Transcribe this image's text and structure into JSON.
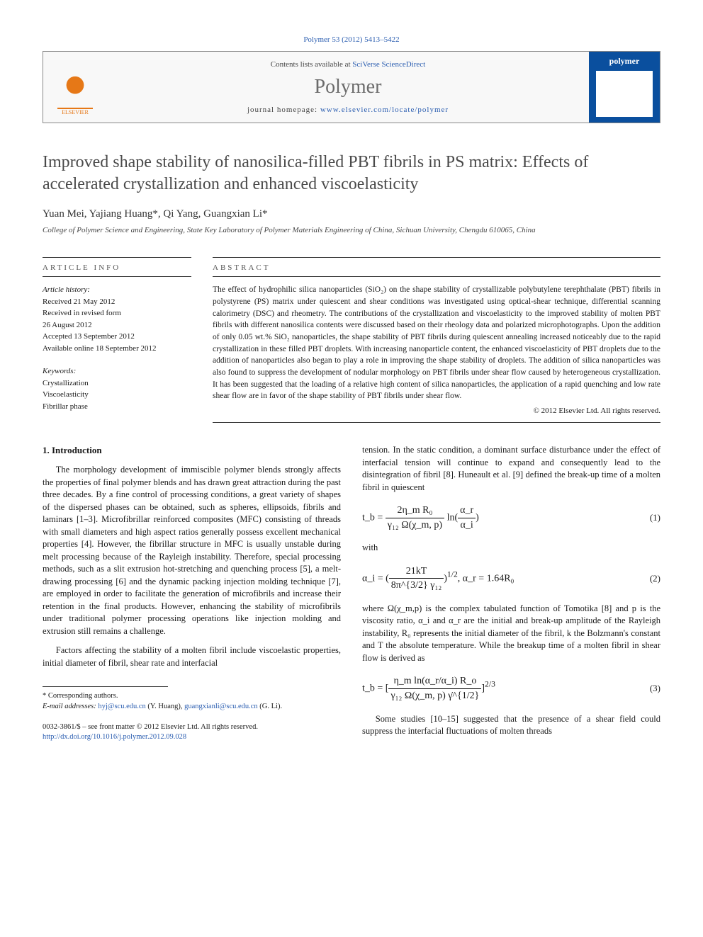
{
  "citation": "Polymer 53 (2012) 5413–5422",
  "header": {
    "contents_prefix": "Contents lists available at ",
    "contents_link": "SciVerse ScienceDirect",
    "journal": "Polymer",
    "homepage_prefix": "journal homepage: ",
    "homepage_link": "www.elsevier.com/locate/polymer",
    "publisher_logo": "ELSEVIER",
    "cover_label": "polymer"
  },
  "title": "Improved shape stability of nanosilica-filled PBT fibrils in PS matrix: Effects of accelerated crystallization and enhanced viscoelasticity",
  "authors": "Yuan Mei, Yajiang Huang*, Qi Yang, Guangxian Li*",
  "affiliation": "College of Polymer Science and Engineering, State Key Laboratory of Polymer Materials Engineering of China, Sichuan University, Chengdu 610065, China",
  "info": {
    "label": "ARTICLE INFO",
    "history_label": "Article history:",
    "history": [
      "Received 21 May 2012",
      "Received in revised form",
      "26 August 2012",
      "Accepted 13 September 2012",
      "Available online 18 September 2012"
    ],
    "keywords_label": "Keywords:",
    "keywords": [
      "Crystallization",
      "Viscoelasticity",
      "Fibrillar phase"
    ]
  },
  "abstract": {
    "label": "ABSTRACT",
    "text": "The effect of hydrophilic silica nanoparticles (SiO₂) on the shape stability of crystallizable polybutylene terephthalate (PBT) fibrils in polystyrene (PS) matrix under quiescent and shear conditions was investigated using optical-shear technique, differential scanning calorimetry (DSC) and rheometry. The contributions of the crystallization and viscoelasticity to the improved stability of molten PBT fibrils with different nanosilica contents were discussed based on their rheology data and polarized microphotographs. Upon the addition of only 0.05 wt.% SiO₂ nanoparticles, the shape stability of PBT fibrils during quiescent annealing increased noticeably due to the rapid crystallization in these filled PBT droplets. With increasing nanoparticle content, the enhanced viscoelasticity of PBT droplets due to the addition of nanoparticles also began to play a role in improving the shape stability of droplets. The addition of silica nanoparticles was also found to suppress the development of nodular morphology on PBT fibrils under shear flow caused by heterogeneous crystallization. It has been suggested that the loading of a relative high content of silica nanoparticles, the application of a rapid quenching and low rate shear flow are in favor of the shape stability of PBT fibrils under shear flow.",
    "copyright": "© 2012 Elsevier Ltd. All rights reserved."
  },
  "body": {
    "section_number": "1.",
    "section_title": "Introduction",
    "left_p1": "The morphology development of immiscible polymer blends strongly affects the properties of final polymer blends and has drawn great attraction during the past three decades. By a fine control of processing conditions, a great variety of shapes of the dispersed phases can be obtained, such as spheres, ellipsoids, fibrils and laminars [1–3]. Microfibrillar reinforced composites (MFC) consisting of threads with small diameters and high aspect ratios generally possess excellent mechanical properties [4]. However, the fibrillar structure in MFC is usually unstable during melt processing because of the Rayleigh instability. Therefore, special processing methods, such as a slit extrusion hot-stretching and quenching process [5], a melt-drawing processing [6] and the dynamic packing injection molding technique [7], are employed in order to facilitate the generation of microfibrils and increase their retention in the final products. However, enhancing the stability of microfibrils under traditional polymer processing operations like injection molding and extrusion still remains a challenge.",
    "left_p2": "Factors affecting the stability of a molten fibril include viscoelastic properties, initial diameter of fibril, shear rate and interfacial",
    "right_p1": "tension. In the static condition, a dominant surface disturbance under the effect of interfacial tension will continue to expand and consequently lead to the disintegration of fibril [8]. Huneault et al. [9] defined the break-up time of a molten fibril in quiescent",
    "eq1_lhs": "t_b =",
    "eq1_num": "2η_m R₀",
    "eq1_den": "γ₁₂ Ω(χ_m, p)",
    "eq1_ln": "ln",
    "eq1_ln_num": "α_r",
    "eq1_ln_den": "α_i",
    "eq1_number": "(1)",
    "with": "with",
    "eq2_lhs": "α_i =",
    "eq2_num": "21kT",
    "eq2_den": "8π^{3/2} γ₁₂",
    "eq2_exp": "1/2",
    "eq2_r": ",   α_r = 1.64R₀",
    "eq2_number": "(2)",
    "right_p2": "where Ω(χ_m,p) is the complex tabulated function of Tomotika [8] and p is the viscosity ratio, α_i and α_r are the initial and break-up amplitude of the Rayleigh instability, R₀ represents the initial diameter of the fibril, k the Bolzmann's constant and T the absolute temperature. While the breakup time of a molten fibril in shear flow is derived as",
    "eq3_lhs": "t_b =",
    "eq3_num": "η_m ln(α_r/α_i) R_o",
    "eq3_den": "γ₁₂ Ω(χ_m, p) γ̇^{1/2}",
    "eq3_exp": "2/3",
    "eq3_number": "(3)",
    "right_p3": "Some studies [10–15] suggested that the presence of a shear field could suppress the interfacial fluctuations of molten threads"
  },
  "footnote": {
    "corr": "* Corresponding authors.",
    "email_label": "E-mail addresses: ",
    "email1": "hyj@scu.edu.cn",
    "email1_name": " (Y. Huang), ",
    "email2": "guangxianli@scu.edu.cn",
    "email2_name": " (G. Li)."
  },
  "bottom": {
    "issn": "0032-3861/$ – see front matter © 2012 Elsevier Ltd. All rights reserved.",
    "doi": "http://dx.doi.org/10.1016/j.polymer.2012.09.028"
  },
  "colors": {
    "link": "#2a5db0",
    "elsevier_orange": "#e67817",
    "cover_blue": "#0a4f9e",
    "text_gray": "#4a4a4a"
  }
}
